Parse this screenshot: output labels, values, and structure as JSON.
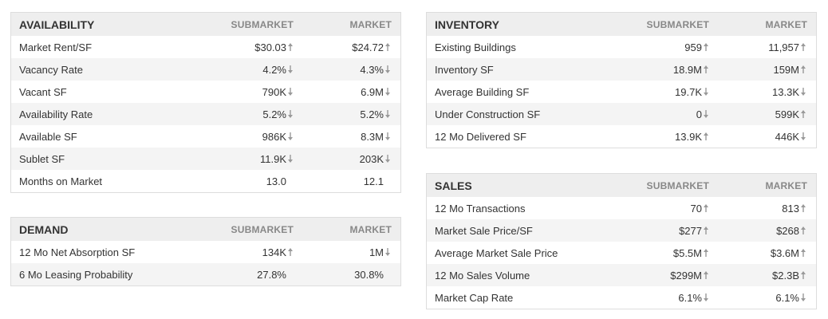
{
  "availability": {
    "title": "AVAILABILITY",
    "col1": "SUBMARKET",
    "col2": "MARKET",
    "rows": [
      {
        "label": "Market Rent/SF",
        "sub": "$30.03",
        "sub_trend": "up",
        "mkt": "$24.72",
        "mkt_trend": "up"
      },
      {
        "label": "Vacancy Rate",
        "sub": "4.2%",
        "sub_trend": "down",
        "mkt": "4.3%",
        "mkt_trend": "down"
      },
      {
        "label": "Vacant SF",
        "sub": "790K",
        "sub_trend": "down",
        "mkt": "6.9M",
        "mkt_trend": "down"
      },
      {
        "label": "Availability Rate",
        "sub": "5.2%",
        "sub_trend": "down",
        "mkt": "5.2%",
        "mkt_trend": "down"
      },
      {
        "label": "Available SF",
        "sub": "986K",
        "sub_trend": "down",
        "mkt": "8.3M",
        "mkt_trend": "down"
      },
      {
        "label": "Sublet SF",
        "sub": "11.9K",
        "sub_trend": "down",
        "mkt": "203K",
        "mkt_trend": "down"
      },
      {
        "label": "Months on Market",
        "sub": "13.0",
        "sub_trend": "",
        "mkt": "12.1",
        "mkt_trend": ""
      }
    ]
  },
  "demand": {
    "title": "DEMAND",
    "col1": "SUBMARKET",
    "col2": "MARKET",
    "rows": [
      {
        "label": "12 Mo Net Absorption SF",
        "sub": "134K",
        "sub_trend": "up",
        "mkt": "1M",
        "mkt_trend": "down"
      },
      {
        "label": "6 Mo Leasing Probability",
        "sub": "27.8%",
        "sub_trend": "",
        "mkt": "30.8%",
        "mkt_trend": ""
      }
    ]
  },
  "inventory": {
    "title": "INVENTORY",
    "col1": "SUBMARKET",
    "col2": "MARKET",
    "rows": [
      {
        "label": "Existing Buildings",
        "sub": "959",
        "sub_trend": "up",
        "mkt": "11,957",
        "mkt_trend": "up"
      },
      {
        "label": "Inventory SF",
        "sub": "18.9M",
        "sub_trend": "up",
        "mkt": "159M",
        "mkt_trend": "up"
      },
      {
        "label": "Average Building SF",
        "sub": "19.7K",
        "sub_trend": "down",
        "mkt": "13.3K",
        "mkt_trend": "down"
      },
      {
        "label": "Under Construction SF",
        "sub": "0",
        "sub_trend": "down",
        "mkt": "599K",
        "mkt_trend": "up"
      },
      {
        "label": "12 Mo Delivered SF",
        "sub": "13.9K",
        "sub_trend": "up",
        "mkt": "446K",
        "mkt_trend": "down"
      }
    ]
  },
  "sales": {
    "title": "SALES",
    "col1": "SUBMARKET",
    "col2": "MARKET",
    "rows": [
      {
        "label": "12 Mo Transactions",
        "sub": "70",
        "sub_trend": "up",
        "mkt": "813",
        "mkt_trend": "up"
      },
      {
        "label": "Market Sale Price/SF",
        "sub": "$277",
        "sub_trend": "up",
        "mkt": "$268",
        "mkt_trend": "up"
      },
      {
        "label": "Average Market Sale Price",
        "sub": "$5.5M",
        "sub_trend": "up",
        "mkt": "$3.6M",
        "mkt_trend": "up"
      },
      {
        "label": "12 Mo Sales Volume",
        "sub": "$299M",
        "sub_trend": "up",
        "mkt": "$2.3B",
        "mkt_trend": "up"
      },
      {
        "label": "Market Cap Rate",
        "sub": "6.1%",
        "sub_trend": "down",
        "mkt": "6.1%",
        "mkt_trend": "down"
      }
    ]
  },
  "colors": {
    "header_bg": "#eeeeee",
    "alt_row_bg": "#f4f4f4",
    "border": "#dddddd",
    "text": "#333333",
    "muted": "#888888",
    "arrow": "#999999"
  },
  "icons": {
    "up": "arrow-up-icon",
    "down": "arrow-down-icon"
  }
}
